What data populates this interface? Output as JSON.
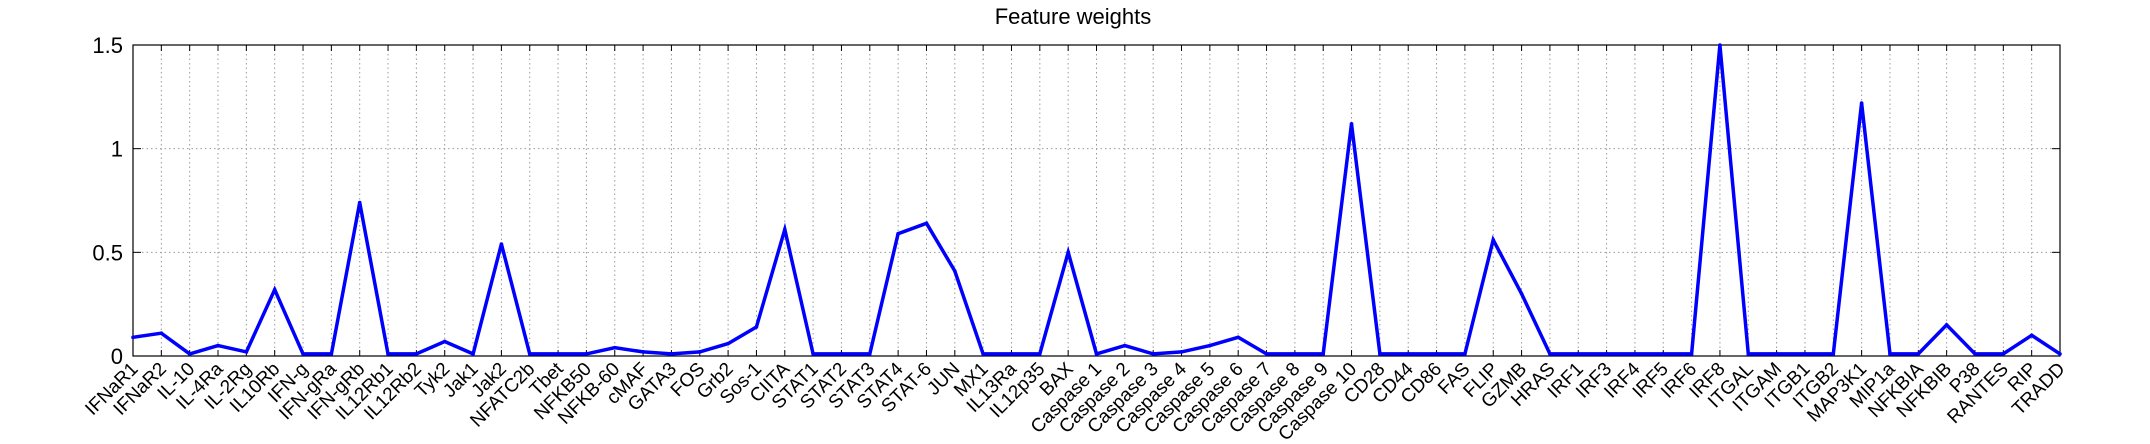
{
  "chart_data": {
    "type": "line",
    "title": "Feature weights",
    "xlabel": "",
    "ylabel": "",
    "ylim": [
      0,
      1.5
    ],
    "yticks": [
      "0",
      "0.5",
      "1",
      "1.5"
    ],
    "grid": true,
    "line_color": "#0000ff",
    "categories": [
      "IFNaR1",
      "IFNaR2",
      "IL-10",
      "IL-4Ra",
      "IL-2Rg",
      "IL10Rb",
      "IFN-g",
      "IFN-gRa",
      "IFN-gRb",
      "IL12Rb1",
      "IL12Rb2",
      "Tyk2",
      "Jak1",
      "Jak2",
      "NFATC2b",
      "Tbet",
      "NFKB50",
      "NFKB-60",
      "cMAF",
      "GATA3",
      "FOS",
      "Grb2",
      "Sos-1",
      "CIITA",
      "STAT1",
      "STAT2",
      "STAT3",
      "STAT4",
      "STAT-6",
      "JUN",
      "MX1",
      "IL13Ra",
      "IL12p35",
      "BAX",
      "Caspase 1",
      "Caspase 2",
      "Caspase 3",
      "Caspase 4",
      "Caspase 5",
      "Caspase 6",
      "Caspase 7",
      "Caspase 8",
      "Caspase 9",
      "Caspase 10",
      "CD28",
      "CD44",
      "CD86",
      "FAS",
      "FLIP",
      "GZMB",
      "HRAS",
      "IRF1",
      "IRF3",
      "IRF4",
      "IRF5",
      "IRF6",
      "IRF8",
      "ITGAL",
      "ITGAM",
      "ITGB1",
      "ITGB2",
      "MAP3K1",
      "MIP1a",
      "NFKBIA",
      "NFKBIB",
      "P38",
      "RANTES",
      "RIP",
      "TRADD"
    ],
    "series": [
      {
        "values": [
          0.09,
          0.11,
          0.01,
          0.05,
          0.02,
          0.32,
          0.01,
          0.01,
          0.74,
          0.01,
          0.01,
          0.07,
          0.01,
          0.54,
          0.01,
          0.01,
          0.01,
          0.04,
          0.02,
          0.01,
          0.02,
          0.06,
          0.14,
          0.61,
          0.01,
          0.01,
          0.01,
          0.59,
          0.64,
          0.41,
          0.01,
          0.01,
          0.01,
          0.5,
          0.01,
          0.05,
          0.01,
          0.02,
          0.05,
          0.09,
          0.01,
          0.01,
          0.01,
          1.12,
          0.01,
          0.01,
          0.01,
          0.01,
          0.56,
          0.3,
          0.01,
          0.01,
          0.01,
          0.01,
          0.01,
          0.01,
          1.5,
          0.01,
          0.01,
          0.01,
          0.01,
          1.22,
          0.01,
          0.01,
          0.15,
          0.01,
          0.01,
          0.1,
          0.01
        ]
      }
    ]
  }
}
